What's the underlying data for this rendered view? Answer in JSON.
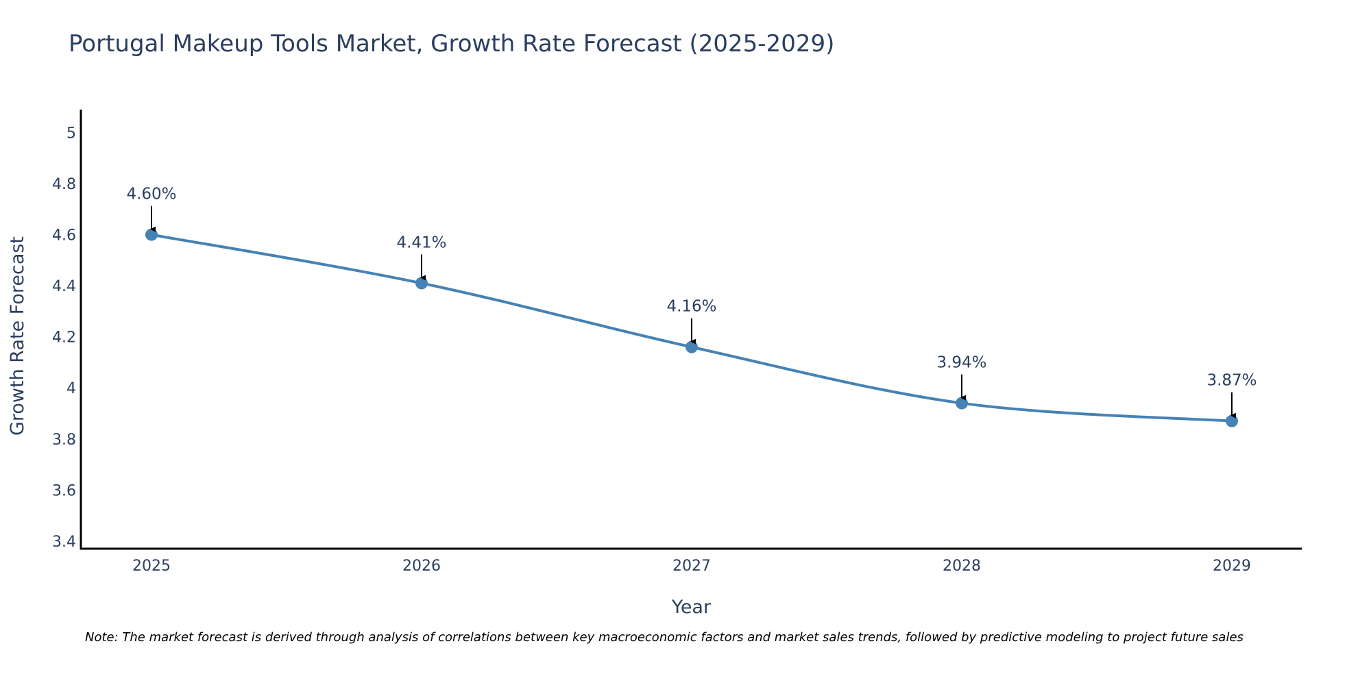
{
  "title": "Portugal Makeup Tools Market, Growth Rate Forecast (2025-2029)",
  "note": "Note: The market forecast is derived through analysis of correlations between key macroeconomic factors and market sales trends, followed by predictive modeling to project future sales",
  "chart_data": {
    "type": "line",
    "title": "Portugal Makeup Tools Market, Growth Rate Forecast (2025-2029)",
    "xlabel": "Year",
    "ylabel": "Growth Rate Forecast",
    "categories": [
      "2025",
      "2026",
      "2027",
      "2028",
      "2029"
    ],
    "series": [
      {
        "name": "Growth Rate Forecast",
        "values": [
          4.6,
          4.41,
          4.16,
          3.94,
          3.87
        ],
        "labels": [
          "4.60%",
          "4.41%",
          "4.16%",
          "3.94%",
          "3.87%"
        ],
        "color": "#4682b4",
        "line_shape": "spline"
      }
    ],
    "ylim": [
      3.37,
      5.09
    ],
    "yticks": [
      3.4,
      3.6,
      3.8,
      4,
      4.2,
      4.4,
      4.6,
      4.8,
      5
    ],
    "ytick_labels": [
      "3.4",
      "3.6",
      "3.8",
      "4",
      "4.2",
      "4.4",
      "4.6",
      "4.8",
      "5"
    ],
    "grid": false,
    "legend": "none",
    "annotations": "arrow from label to each point"
  }
}
